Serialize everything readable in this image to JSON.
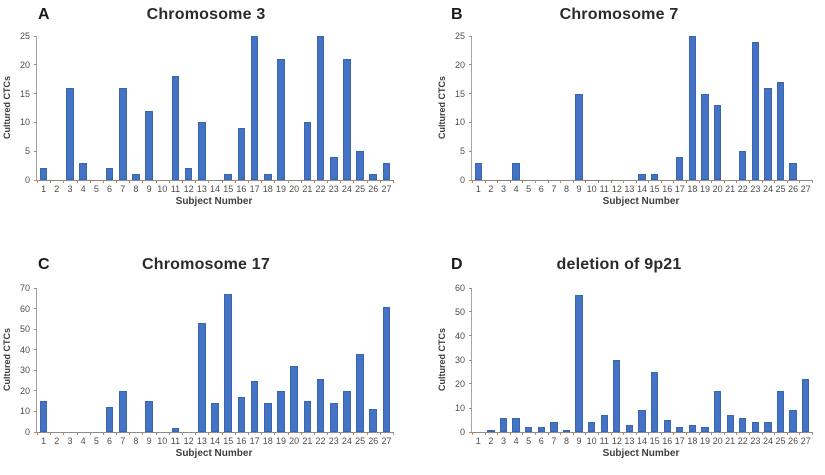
{
  "figure": {
    "background": "#ffffff",
    "bar_color": "#4472C4",
    "bar_edge_color": "#3a66ae",
    "axis_color": "#8c8c8c",
    "tick_color": "#c08552",
    "text_color": "#4d4d4d"
  },
  "chart_data": [
    {
      "panel": "A",
      "type": "bar",
      "title": "Chromosome 3",
      "xlabel": "Subject Number",
      "ylabel": "Cultured CTCs",
      "categories": [
        "1",
        "2",
        "3",
        "4",
        "5",
        "6",
        "7",
        "8",
        "9",
        "10",
        "11",
        "12",
        "13",
        "14",
        "15",
        "16",
        "17",
        "18",
        "19",
        "20",
        "21",
        "22",
        "23",
        "24",
        "25",
        "26",
        "27"
      ],
      "values": [
        2,
        0,
        16,
        3,
        0,
        2,
        16,
        1,
        12,
        0,
        18,
        2,
        10,
        0,
        1,
        9,
        25,
        1,
        21,
        0,
        10,
        25,
        4,
        21,
        5,
        1,
        3
      ],
      "ylim": [
        0,
        25
      ],
      "yticks": [
        0,
        5,
        10,
        15,
        20,
        25
      ],
      "grid": false,
      "legend": false
    },
    {
      "panel": "B",
      "type": "bar",
      "title": "Chromosome 7",
      "xlabel": "Subject Number",
      "ylabel": "Cultured CTCs",
      "categories": [
        "1",
        "2",
        "3",
        "4",
        "5",
        "6",
        "7",
        "8",
        "9",
        "10",
        "11",
        "12",
        "13",
        "14",
        "15",
        "16",
        "17",
        "18",
        "19",
        "20",
        "21",
        "22",
        "23",
        "24",
        "25",
        "26",
        "27"
      ],
      "values": [
        3,
        0,
        0,
        3,
        0,
        0,
        0,
        0,
        15,
        0,
        0,
        0,
        0,
        1,
        1,
        0,
        4,
        25,
        15,
        13,
        0,
        5,
        24,
        16,
        17,
        3,
        0
      ],
      "ylim": [
        0,
        25
      ],
      "yticks": [
        0,
        5,
        10,
        15,
        20,
        25
      ],
      "grid": false,
      "legend": false
    },
    {
      "panel": "C",
      "type": "bar",
      "title": "Chromosome 17",
      "xlabel": "Subject Number",
      "ylabel": "Cultured CTCs",
      "categories": [
        "1",
        "2",
        "3",
        "4",
        "5",
        "6",
        "7",
        "8",
        "9",
        "10",
        "11",
        "12",
        "13",
        "14",
        "15",
        "16",
        "17",
        "18",
        "19",
        "20",
        "21",
        "22",
        "23",
        "24",
        "25",
        "26",
        "27"
      ],
      "values": [
        15,
        0,
        0,
        0,
        0,
        12,
        20,
        0,
        15,
        0,
        2,
        0,
        53,
        14,
        67,
        17,
        25,
        14,
        20,
        32,
        15,
        26,
        14,
        20,
        38,
        11,
        61
      ],
      "ylim": [
        0,
        70
      ],
      "yticks": [
        0,
        10,
        20,
        30,
        40,
        50,
        60,
        70
      ],
      "grid": false,
      "legend": false
    },
    {
      "panel": "D",
      "type": "bar",
      "title": "deletion of 9p21",
      "xlabel": "Subject Number",
      "ylabel": "Cultured CTCs",
      "categories": [
        "1",
        "2",
        "3",
        "4",
        "5",
        "6",
        "7",
        "8",
        "9",
        "10",
        "11",
        "12",
        "13",
        "14",
        "15",
        "16",
        "17",
        "18",
        "19",
        "20",
        "21",
        "22",
        "23",
        "24",
        "25",
        "26",
        "27"
      ],
      "values": [
        0,
        1,
        6,
        6,
        2,
        2,
        4,
        1,
        57,
        4,
        7,
        30,
        3,
        9,
        25,
        5,
        2,
        3,
        2,
        17,
        7,
        6,
        4,
        4,
        17,
        9,
        22
      ],
      "ylim": [
        0,
        60
      ],
      "yticks": [
        0,
        10,
        20,
        30,
        40,
        50,
        60
      ],
      "grid": false,
      "legend": false
    }
  ]
}
